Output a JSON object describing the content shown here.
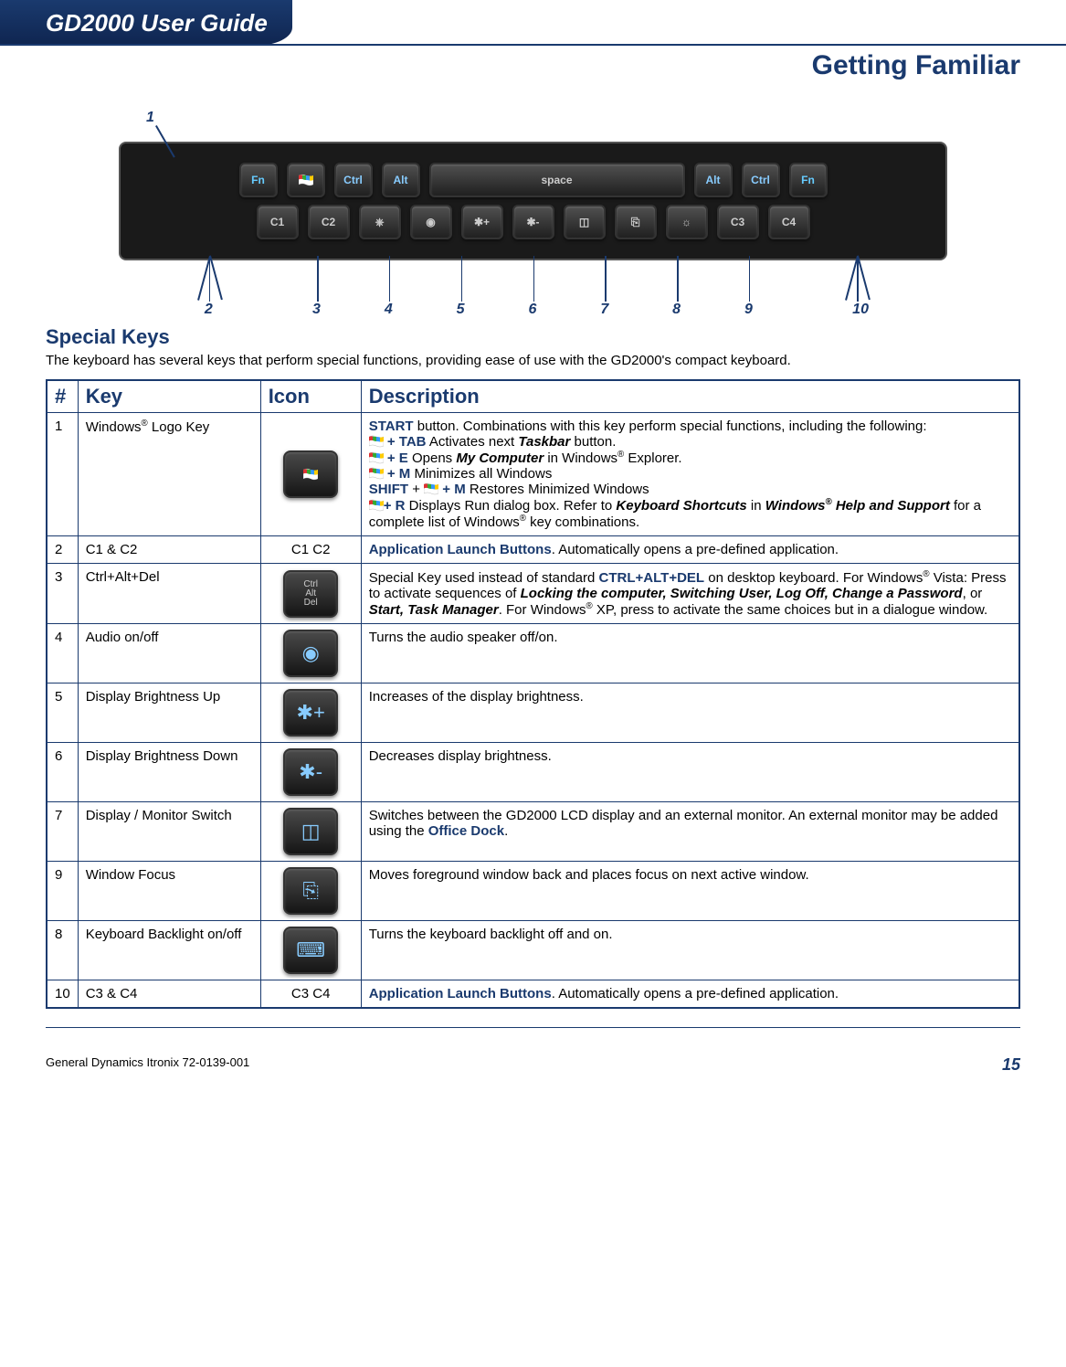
{
  "doc": {
    "title": "GD2000 User Guide",
    "section": "Getting Familiar",
    "footer_left": "General Dynamics Itronix 72-0139-001",
    "page_number": "15"
  },
  "colors": {
    "brand": "#1a3a6e",
    "key_text": "#8cf"
  },
  "keyboard": {
    "top_row": [
      "Fn",
      "",
      "Ctrl",
      "Alt",
      "space",
      "Alt",
      "Ctrl",
      "Fn"
    ],
    "bottom_row": [
      "C1",
      "C2",
      "⎈",
      "◉",
      "✱+",
      "✱-",
      "◫",
      "⎘",
      "☼",
      "C3",
      "C4"
    ],
    "callouts": [
      "1",
      "2",
      "3",
      "4",
      "5",
      "6",
      "7",
      "8",
      "9",
      "10"
    ]
  },
  "special_keys": {
    "title": "Special Keys",
    "intro": "The keyboard has several keys that perform special functions, providing ease of use with the GD2000's compact keyboard."
  },
  "table": {
    "headers": [
      "#",
      "Key",
      "Icon",
      "Description"
    ],
    "rows": [
      {
        "num": "1",
        "key": "Windows® Logo Key",
        "icon": "win",
        "desc_html": "start"
      },
      {
        "num": "2",
        "key": "C1 & C2",
        "icon_text": "C1  C2",
        "desc_html": "launch"
      },
      {
        "num": "3",
        "key": "Ctrl+Alt+Del",
        "icon": "cad",
        "desc_html": "cad"
      },
      {
        "num": "4",
        "key": "Audio on/off",
        "icon": "audio",
        "desc": "Turns the audio speaker off/on."
      },
      {
        "num": "5",
        "key": "Display Brightness Up",
        "icon": "bright_up",
        "desc": "Increases of the display brightness."
      },
      {
        "num": "6",
        "key": "Display Brightness Down",
        "icon": "bright_down",
        "desc": "Decreases display brightness."
      },
      {
        "num": "7",
        "key": "Display / Monitor Switch",
        "icon": "monitor",
        "desc_html": "monitor"
      },
      {
        "num": "9",
        "key": "Window Focus",
        "icon": "focus",
        "desc": "Moves foreground window back and places focus on next active window."
      },
      {
        "num": "8",
        "key": "Keyboard Backlight on/off",
        "icon": "backlight",
        "desc": "Turns the keyboard backlight off and on."
      },
      {
        "num": "10",
        "key": "C3 & C4",
        "icon_text": "C3 C4",
        "desc_html": "launch"
      }
    ],
    "strings": {
      "start_label": "START",
      "start_text1": " button. Combinations with this key perform special functions, includ­ing the following:",
      "tab": " + TAB",
      "tab_text": "   Activates next ",
      "taskbar": "Taskbar",
      "tab_text2": " button.",
      "e": " + E",
      "e_text": "  Opens ",
      "mycomp": "My Computer",
      "e_text2": " in Windows® Explorer.",
      "m": " + M",
      "m_text": " Minimizes all Windows",
      "shift": "SHIFT",
      "shift_text": " + ",
      "shiftm": " + M",
      "shiftm_text": " Restores Minimized Windows",
      "r": "+ R",
      "r_text": " Displays Run dialog box.   Refer to ",
      "kbshort": "Keyboard Shortcuts",
      "r_text2": " in ",
      "winhelp": "Windows® Help and Support",
      "r_text3": " for a complete list of Windows® key combinations.",
      "launch_label": "Application Launch Buttons",
      "launch_text": ".  Automatically opens a pre-defined application.",
      "cad1": "Special Key used instead of standard ",
      "cad_keys": "CTRL+ALT+DEL",
      "cad2": " on desktop keyboard.  For Windows® Vista:  Press to activate sequences of ",
      "cad_ital1": "Locking the computer, Switching User, Log Off, Change a Password",
      "cad3": ", or ",
      "cad_ital2": "Start, Task Manager",
      "cad4": ".  For Windows® XP, press to activate the same choices but in a dialogue window.",
      "mon1": "Switches between the GD2000 LCD display and an external monitor.  An external monitor may be added using the ",
      "mon_link": "Office Dock",
      "mon2": "."
    }
  }
}
